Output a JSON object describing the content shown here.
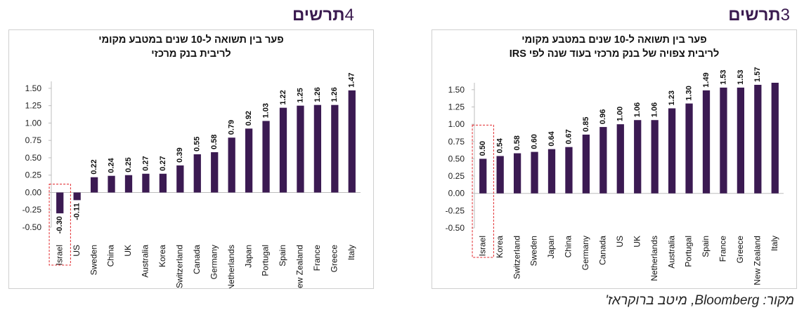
{
  "left_heading": {
    "word": "תרשים",
    "number": "4"
  },
  "right_heading": {
    "word": "תרשים",
    "number": "3"
  },
  "source": "מקור: Bloomberg, מיטב ברוקראז'",
  "chart_data": [
    {
      "type": "bar",
      "title_lines": [
        "פער בין תשואה ל-10 שנים במטבע מקומי",
        "לריבית בנק מרכזי"
      ],
      "categories": [
        "Israel",
        "US",
        "Sweden",
        "China",
        "UK",
        "Australia",
        "Korea",
        "Switzerland",
        "Canada",
        "Germany",
        "Netherlands",
        "Japan",
        "Portugal",
        "Spain",
        "New Zealand",
        "France",
        "Greece",
        "Italy"
      ],
      "values": [
        -0.3,
        -0.11,
        0.22,
        0.24,
        0.25,
        0.27,
        0.27,
        0.39,
        0.55,
        0.58,
        0.79,
        0.92,
        1.03,
        1.22,
        1.25,
        1.26,
        1.26,
        1.47
      ],
      "value_labels": [
        "-0.30",
        "-0.11",
        "0.22",
        "0.24",
        "0.25",
        "0.27",
        "0.27",
        "0.39",
        "0.55",
        "0.58",
        "0.79",
        "0.92",
        "1.03",
        "1.22",
        "1.25",
        "1.26",
        "1.26",
        "1.47"
      ],
      "ylim": [
        -0.5,
        1.6
      ],
      "yticks": [
        "-0.50",
        "-0.25",
        "0.00",
        "0.25",
        "0.50",
        "0.75",
        "1.00",
        "1.25",
        "1.50"
      ],
      "ytick_values": [
        -0.5,
        -0.25,
        0,
        0.25,
        0.5,
        0.75,
        1.0,
        1.25,
        1.5
      ],
      "highlight_category": "Israel",
      "bar_color": "#3b1a52",
      "highlight_color": "#e0262a",
      "grid": false
    },
    {
      "type": "bar",
      "title_lines": [
        "פער בין תשואה ל-10 שנים במטבע מקומי",
        "לריבית צפויה של בנק מרכזי בעוד שנה לפי IRS"
      ],
      "categories": [
        "Israel",
        "Korea",
        "Switzerland",
        "Sweden",
        "Japan",
        "China",
        "Germany",
        "Canada",
        "US",
        "UK",
        "Netherlands",
        "Australia",
        "Portugal",
        "Spain",
        "France",
        "Greece",
        "New Zealand",
        "Italy"
      ],
      "values": [
        0.5,
        0.54,
        0.58,
        0.6,
        0.64,
        0.67,
        0.85,
        0.96,
        1.0,
        1.06,
        1.06,
        1.23,
        1.3,
        1.49,
        1.53,
        1.53,
        1.57,
        1.6
      ],
      "value_labels": [
        "0.50",
        "0.54",
        "0.58",
        "0.60",
        "0.64",
        "0.67",
        "0.85",
        "0.96",
        "1.00",
        "1.06",
        "1.06",
        "1.23",
        "1.30",
        "1.49",
        "1.53",
        "1.53",
        "1.57",
        ""
      ],
      "ylim": [
        -0.5,
        1.6
      ],
      "yticks": [
        "-0.50",
        "-0.25",
        "0.00",
        "0.25",
        "0.50",
        "0.75",
        "1.00",
        "1.25",
        "1.50"
      ],
      "ytick_values": [
        -0.5,
        -0.25,
        0,
        0.25,
        0.5,
        0.75,
        1.0,
        1.25,
        1.5
      ],
      "highlight_category": "Israel",
      "bar_color": "#3b1a52",
      "highlight_color": "#e0262a",
      "grid": false
    }
  ]
}
